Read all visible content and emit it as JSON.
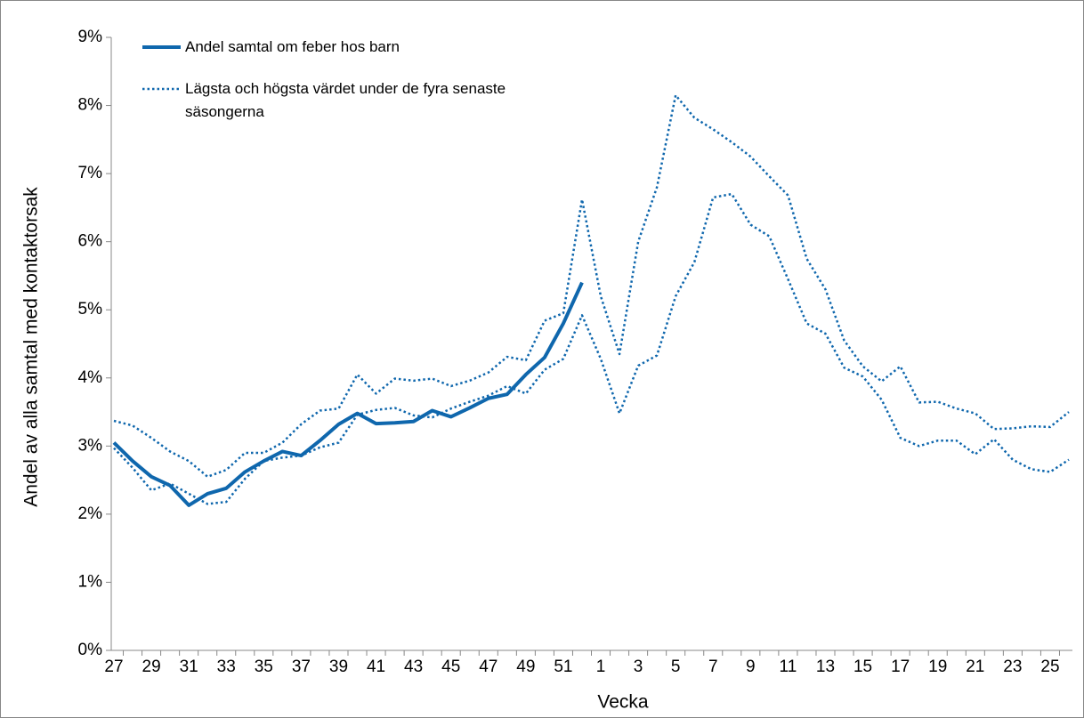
{
  "chart_data": {
    "type": "line",
    "x_label": "Vecka",
    "y_label": "Andel av alla samtal med kontaktorsak",
    "categories": [
      "27",
      null,
      "29",
      null,
      "31",
      null,
      "33",
      null,
      "35",
      null,
      "37",
      null,
      "39",
      null,
      "41",
      null,
      "43",
      null,
      "45",
      null,
      "47",
      null,
      "49",
      null,
      "51",
      null,
      "1",
      null,
      "3",
      null,
      "5",
      null,
      "7",
      null,
      "9",
      null,
      "11",
      null,
      "13",
      null,
      "15",
      null,
      "17",
      null,
      "19",
      null,
      "21",
      null,
      "23",
      null,
      "25",
      null
    ],
    "ylim": [
      0,
      9
    ],
    "yticks": [
      {
        "value": 0,
        "label": "0%"
      },
      {
        "value": 1,
        "label": "1%"
      },
      {
        "value": 2,
        "label": "2%"
      },
      {
        "value": 3,
        "label": "3%"
      },
      {
        "value": 4,
        "label": "4%"
      },
      {
        "value": 5,
        "label": "5%"
      },
      {
        "value": 6,
        "label": "6%"
      },
      {
        "value": 7,
        "label": "7%"
      },
      {
        "value": 8,
        "label": "8%"
      },
      {
        "value": 9,
        "label": "9%"
      }
    ],
    "grid": false,
    "series": [
      {
        "name": "Andel samtal om feber hos barn",
        "color": "#0f67ad",
        "style": "solid",
        "values": [
          3.05,
          2.78,
          2.55,
          2.42,
          2.13,
          2.3,
          2.38,
          2.62,
          2.78,
          2.92,
          2.86,
          3.08,
          3.32,
          3.48,
          3.33,
          3.34,
          3.36,
          3.52,
          3.43,
          3.56,
          3.7,
          3.76,
          4.05,
          4.3,
          4.8,
          5.4,
          null,
          null,
          null,
          null,
          null,
          null,
          null,
          null,
          null,
          null,
          null,
          null,
          null,
          null,
          null,
          null,
          null,
          null,
          null,
          null,
          null,
          null,
          null,
          null,
          null,
          null
        ]
      },
      {
        "name": "Lägsta och högsta värdet under de fyra senaste säsongerna",
        "color": "#0f67ad",
        "style": "dotted",
        "values": [
          3.37,
          3.3,
          3.12,
          2.92,
          2.78,
          2.55,
          2.65,
          2.9,
          2.9,
          3.05,
          3.32,
          3.52,
          3.55,
          4.05,
          3.77,
          3.99,
          3.96,
          3.99,
          3.88,
          3.96,
          4.08,
          4.31,
          4.26,
          4.84,
          4.95,
          6.62,
          5.2,
          4.35,
          6.0,
          6.8,
          8.15,
          7.82,
          7.65,
          7.46,
          7.25,
          6.96,
          6.68,
          5.75,
          5.3,
          4.55,
          4.17,
          3.95,
          4.17,
          3.64,
          3.65,
          3.55,
          3.48,
          3.25,
          3.26,
          3.29,
          3.28,
          3.5
        ]
      },
      {
        "color": "#0f67ad",
        "style": "dotted",
        "values": [
          2.97,
          2.68,
          2.35,
          2.45,
          2.3,
          2.15,
          2.18,
          2.52,
          2.78,
          2.83,
          2.86,
          2.98,
          3.05,
          3.46,
          3.53,
          3.56,
          3.45,
          3.42,
          3.55,
          3.65,
          3.74,
          3.88,
          3.77,
          4.12,
          4.28,
          4.92,
          4.28,
          3.48,
          4.18,
          4.33,
          5.2,
          5.7,
          6.65,
          6.7,
          6.25,
          6.08,
          5.45,
          4.8,
          4.65,
          4.15,
          4.02,
          3.68,
          3.12,
          3.0,
          3.08,
          3.08,
          2.88,
          3.1,
          2.8,
          2.66,
          2.62,
          2.8
        ]
      }
    ]
  }
}
